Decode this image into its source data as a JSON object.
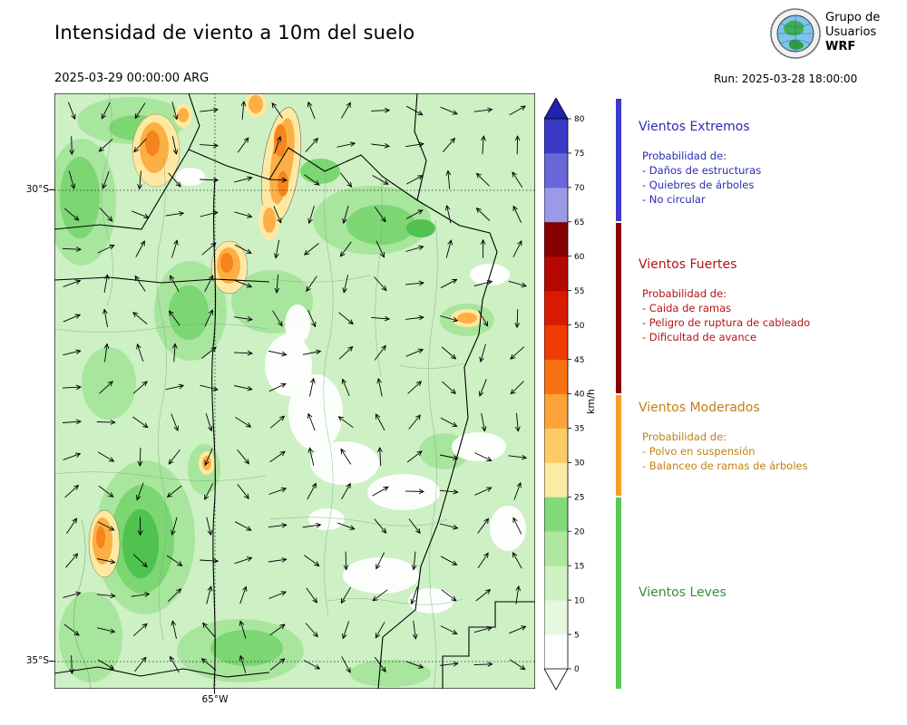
{
  "header": {
    "title": "Intensidad de viento a 10m del suelo",
    "valid_time": "2025-03-29 00:00:00 ARG",
    "run_label": "Run: 2025-03-28 18:00:00",
    "logo": {
      "line1": "Grupo de",
      "line2": "Usuarios",
      "line3": "WRF"
    }
  },
  "map": {
    "lat_ticks": [
      "30°S",
      "35°S"
    ],
    "lon_ticks": [
      "65°W"
    ]
  },
  "colorbar": {
    "unit": "km/h"
  },
  "legend": {
    "sections": [
      {
        "title": "Vientos Extremos",
        "text_color": "#2b2bb4",
        "bar_color": "#3a3acc",
        "range_kmh": [
          65,
          85
        ],
        "intro": "Probabilidad de:",
        "items": [
          "- Daños de estructuras",
          "- Quiebres de árboles",
          "- No circular"
        ]
      },
      {
        "title": "Vientos Fuertes",
        "text_color": "#b31414",
        "bar_color": "#8b0000",
        "range_kmh": [
          40,
          65
        ],
        "intro": "Probabilidad de:",
        "items": [
          "- Caida de ramas",
          "- Peligro de ruptura de cableado",
          "- Dificultad de avance"
        ]
      },
      {
        "title": "Vientos Moderados",
        "text_color": "#c07f17",
        "bar_color": "#f59d28",
        "range_kmh": [
          25,
          40
        ],
        "intro": "Probabilidad de:",
        "items": [
          "- Polvo en suspensión",
          "- Balanceo de ramas de árboles"
        ]
      },
      {
        "title": "Vientos Leves",
        "text_color": "#3c8c3c",
        "bar_color": "#57c957",
        "range_kmh": [
          0,
          25
        ],
        "intro": "",
        "items": []
      }
    ]
  },
  "chart_data": {
    "type": "heatmap",
    "title": "Intensidad de viento a 10m del suelo",
    "valid_time_local": "2025-03-29 00:00:00 ARG",
    "model_run": "Run: 2025-03-28 18:00:00",
    "units": "km/h",
    "field": "wind speed at 10 m with wind-direction arrows overlay",
    "colorbar": {
      "orientation": "vertical",
      "ticks": [
        0,
        5,
        10,
        15,
        20,
        25,
        30,
        35,
        40,
        45,
        50,
        55,
        60,
        65,
        70,
        75,
        80
      ],
      "segment_colors": [
        "#ffffff",
        "#e6f8de",
        "#cef2c2",
        "#aee8a0",
        "#82da78",
        "#fdeaa4",
        "#fdca68",
        "#fba338",
        "#f87212",
        "#f03c00",
        "#d91a00",
        "#b40800",
        "#870000",
        "#9a9ae8",
        "#6a68d8",
        "#3b3ac6"
      ],
      "over_arrow_color": "#2222b0",
      "under_arrow_color": "#ffffff"
    },
    "axes": {
      "lat_ticks": [
        "30°S",
        "35°S"
      ],
      "lon_ticks": [
        "65°W"
      ],
      "grid": "dotted"
    },
    "categories": [
      {
        "name": "Vientos Leves",
        "range_kmh": [
          0,
          25
        ]
      },
      {
        "name": "Vientos Moderados",
        "range_kmh": [
          25,
          40
        ]
      },
      {
        "name": "Vientos Fuertes",
        "range_kmh": [
          40,
          65
        ]
      },
      {
        "name": "Vientos Extremos",
        "range_kmh": [
          65,
          85
        ]
      }
    ]
  }
}
